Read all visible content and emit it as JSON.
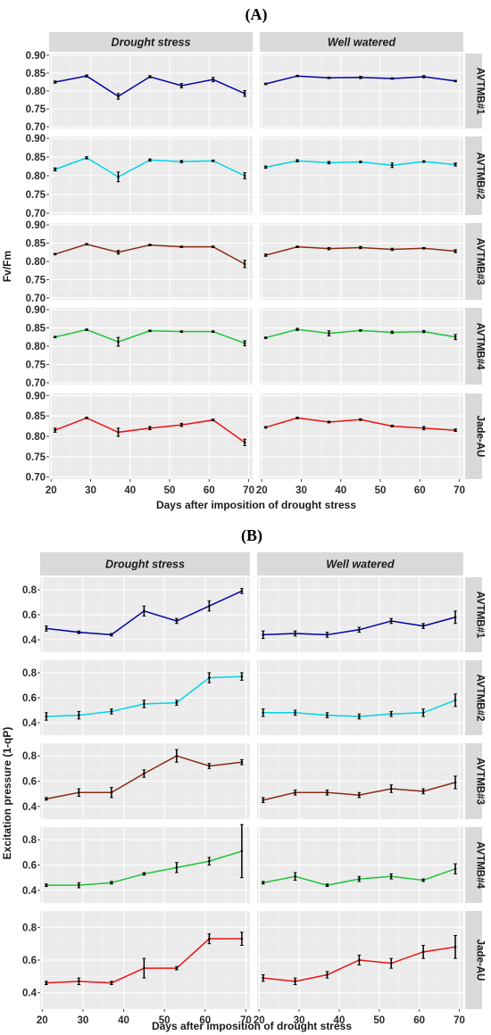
{
  "chart_data": [
    {
      "type": "line",
      "panel_label": "(A)",
      "title": "",
      "xlabel": "Days after imposition of drought stress",
      "ylabel": "Fv/Fm",
      "x": [
        21,
        29,
        37,
        45,
        53,
        61,
        69
      ],
      "xlim": [
        19.5,
        71
      ],
      "xticks": [
        20,
        30,
        40,
        50,
        60,
        70
      ],
      "ylim": [
        0.695,
        0.905
      ],
      "yticks": [
        "0.70",
        "0.75",
        "0.80",
        "0.85",
        "0.90"
      ],
      "columns": [
        "Drought stress",
        "Well watered"
      ],
      "rows": [
        {
          "name": "AVTMB#1",
          "color": "#0000a8",
          "series": [
            {
              "condition": "Drought stress",
              "values": [
                0.825,
                0.842,
                0.785,
                0.84,
                0.815,
                0.832,
                0.793
              ],
              "errors": [
                0.003,
                0.003,
                0.008,
                0.003,
                0.006,
                0.006,
                0.008
              ]
            },
            {
              "condition": "Well watered",
              "values": [
                0.82,
                0.842,
                0.837,
                0.838,
                0.835,
                0.84,
                0.828
              ],
              "errors": [
                0.002,
                0.002,
                0.002,
                0.003,
                0.002,
                0.003,
                0.002
              ]
            }
          ]
        },
        {
          "name": "AVTMB#2",
          "color": "#00d4e6",
          "series": [
            {
              "condition": "Drought stress",
              "values": [
                0.817,
                0.848,
                0.797,
                0.842,
                0.838,
                0.84,
                0.8
              ],
              "errors": [
                0.004,
                0.003,
                0.013,
                0.003,
                0.003,
                0.002,
                0.008
              ]
            },
            {
              "condition": "Well watered",
              "values": [
                0.823,
                0.84,
                0.835,
                0.837,
                0.828,
                0.838,
                0.83
              ],
              "errors": [
                0.003,
                0.003,
                0.003,
                0.002,
                0.006,
                0.002,
                0.004
              ]
            }
          ]
        },
        {
          "name": "AVTMB#3",
          "color": "#8a2a12",
          "series": [
            {
              "condition": "Drought stress",
              "values": [
                0.82,
                0.847,
                0.825,
                0.845,
                0.84,
                0.84,
                0.793
              ],
              "errors": [
                0.002,
                0.002,
                0.005,
                0.002,
                0.002,
                0.002,
                0.01
              ]
            },
            {
              "condition": "Well watered",
              "values": [
                0.817,
                0.84,
                0.835,
                0.838,
                0.833,
                0.836,
                0.828
              ],
              "errors": [
                0.003,
                0.002,
                0.003,
                0.003,
                0.003,
                0.002,
                0.004
              ]
            }
          ]
        },
        {
          "name": "AVTMB#4",
          "color": "#1ec23a",
          "series": [
            {
              "condition": "Drought stress",
              "values": [
                0.825,
                0.845,
                0.812,
                0.842,
                0.84,
                0.84,
                0.808
              ],
              "errors": [
                0.002,
                0.002,
                0.012,
                0.002,
                0.002,
                0.002,
                0.007
              ]
            },
            {
              "condition": "Well watered",
              "values": [
                0.823,
                0.846,
                0.835,
                0.843,
                0.838,
                0.84,
                0.825
              ],
              "errors": [
                0.002,
                0.003,
                0.007,
                0.002,
                0.003,
                0.003,
                0.007
              ]
            }
          ]
        },
        {
          "name": "Jade-AU",
          "color": "#ee1111",
          "series": [
            {
              "condition": "Drought stress",
              "values": [
                0.815,
                0.845,
                0.81,
                0.82,
                0.828,
                0.84,
                0.785
              ],
              "errors": [
                0.005,
                0.002,
                0.01,
                0.004,
                0.004,
                0.002,
                0.008
              ]
            },
            {
              "condition": "Well watered",
              "values": [
                0.822,
                0.845,
                0.835,
                0.841,
                0.825,
                0.82,
                0.815
              ],
              "errors": [
                0.002,
                0.002,
                0.002,
                0.002,
                0.002,
                0.004,
                0.003
              ]
            }
          ]
        }
      ],
      "grid": true,
      "legend": "none"
    },
    {
      "type": "line",
      "panel_label": "(B)",
      "title": "",
      "xlabel": "Days after imposition of drought stress",
      "ylabel": "Excitation pressure (1-qP)",
      "x": [
        21,
        29,
        37,
        45,
        53,
        61,
        69
      ],
      "xlim": [
        19.5,
        71
      ],
      "xticks": [
        20,
        30,
        40,
        50,
        60,
        70
      ],
      "ylim": [
        0.3,
        0.9
      ],
      "yticks": [
        "0.4",
        "0.6",
        "0.8"
      ],
      "columns": [
        "Drought stress",
        "Well watered"
      ],
      "rows": [
        {
          "name": "AVTMB#1",
          "color": "#0000a8",
          "series": [
            {
              "condition": "Drought stress",
              "values": [
                0.49,
                0.46,
                0.44,
                0.63,
                0.55,
                0.67,
                0.79
              ],
              "errors": [
                0.02,
                0.01,
                0.01,
                0.04,
                0.02,
                0.04,
                0.02
              ]
            },
            {
              "condition": "Well watered",
              "values": [
                0.44,
                0.45,
                0.44,
                0.48,
                0.55,
                0.51,
                0.58
              ],
              "errors": [
                0.03,
                0.02,
                0.02,
                0.02,
                0.02,
                0.02,
                0.05
              ]
            }
          ]
        },
        {
          "name": "AVTMB#2",
          "color": "#00d4e6",
          "series": [
            {
              "condition": "Drought stress",
              "values": [
                0.45,
                0.46,
                0.49,
                0.55,
                0.56,
                0.76,
                0.77
              ],
              "errors": [
                0.03,
                0.03,
                0.02,
                0.03,
                0.02,
                0.04,
                0.03
              ]
            },
            {
              "condition": "Well watered",
              "values": [
                0.48,
                0.48,
                0.46,
                0.45,
                0.47,
                0.48,
                0.58
              ],
              "errors": [
                0.03,
                0.02,
                0.02,
                0.02,
                0.02,
                0.03,
                0.05
              ]
            }
          ]
        },
        {
          "name": "AVTMB#3",
          "color": "#8a2a12",
          "series": [
            {
              "condition": "Drought stress",
              "values": [
                0.46,
                0.51,
                0.51,
                0.66,
                0.8,
                0.72,
                0.75
              ],
              "errors": [
                0.01,
                0.03,
                0.04,
                0.03,
                0.05,
                0.02,
                0.02
              ]
            },
            {
              "condition": "Well watered",
              "values": [
                0.45,
                0.51,
                0.51,
                0.49,
                0.54,
                0.52,
                0.59
              ],
              "errors": [
                0.02,
                0.02,
                0.02,
                0.02,
                0.03,
                0.02,
                0.05
              ]
            }
          ]
        },
        {
          "name": "AVTMB#4",
          "color": "#1ec23a",
          "series": [
            {
              "condition": "Drought stress",
              "values": [
                0.44,
                0.44,
                0.46,
                0.53,
                0.58,
                0.63,
                0.71
              ],
              "errors": [
                0.01,
                0.02,
                0.01,
                0.01,
                0.04,
                0.03,
                0.21
              ]
            },
            {
              "condition": "Well watered",
              "values": [
                0.46,
                0.51,
                0.44,
                0.49,
                0.51,
                0.48,
                0.57
              ],
              "errors": [
                0.01,
                0.03,
                0.01,
                0.02,
                0.02,
                0.01,
                0.04
              ]
            }
          ]
        },
        {
          "name": "Jade-AU",
          "color": "#ee1111",
          "series": [
            {
              "condition": "Drought stress",
              "values": [
                0.46,
                0.47,
                0.46,
                0.55,
                0.55,
                0.73,
                0.73
              ],
              "errors": [
                0.01,
                0.02,
                0.01,
                0.06,
                0.01,
                0.03,
                0.04
              ]
            },
            {
              "condition": "Well watered",
              "values": [
                0.49,
                0.47,
                0.51,
                0.6,
                0.58,
                0.65,
                0.68
              ],
              "errors": [
                0.02,
                0.02,
                0.02,
                0.03,
                0.03,
                0.04,
                0.07
              ]
            }
          ]
        }
      ],
      "grid": true,
      "legend": "none"
    }
  ]
}
